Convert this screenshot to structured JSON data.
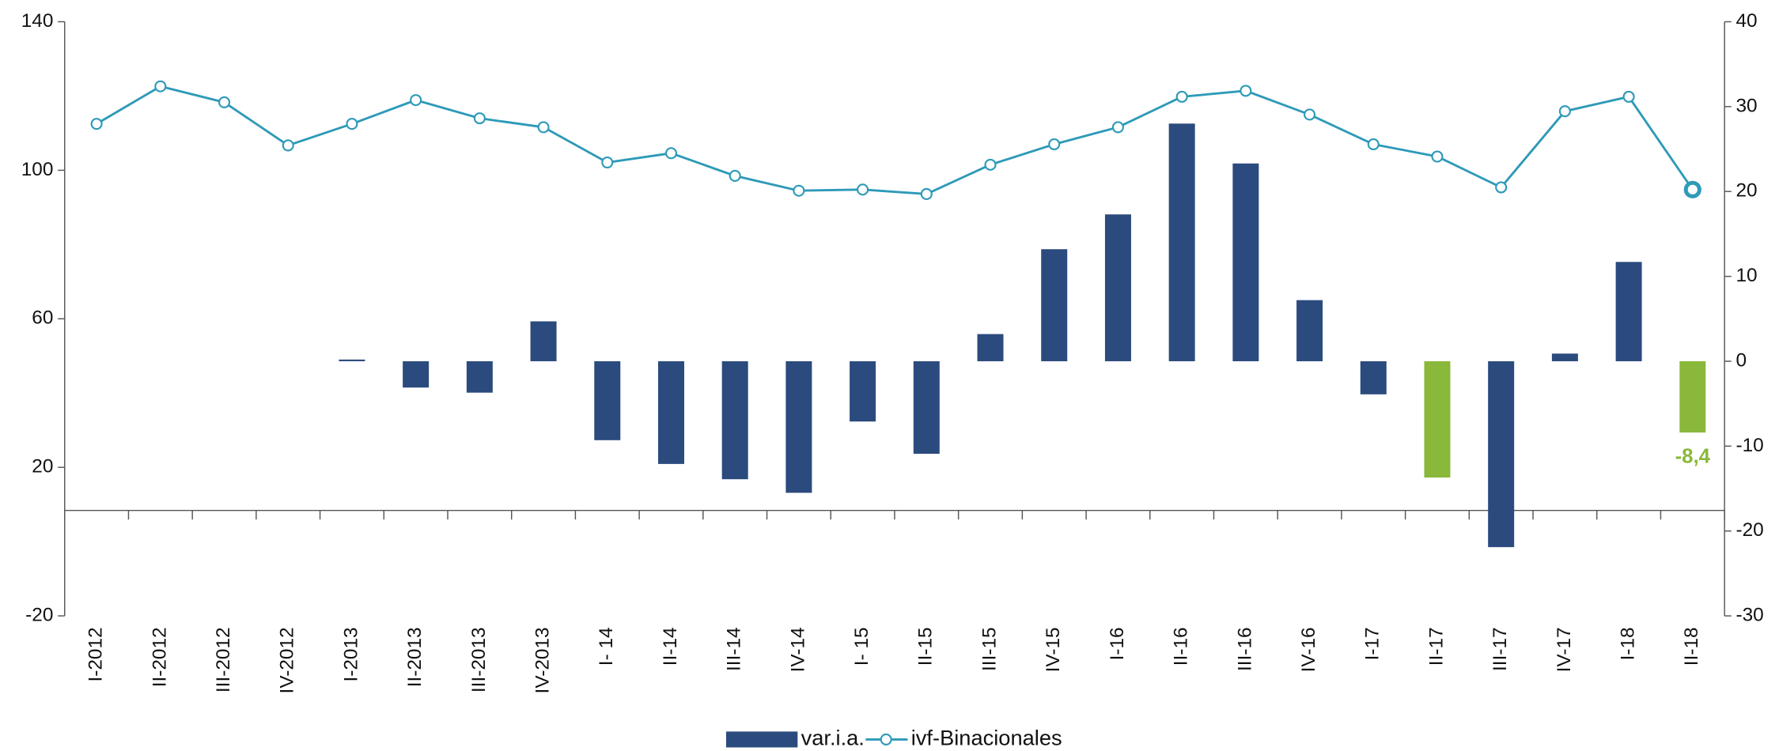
{
  "chart_data": {
    "type": "bar_line",
    "categories": [
      "I-2012",
      "II-2012",
      "III-2012",
      "IV-2012",
      "I-2013",
      "II-2013",
      "III-2013",
      "IV-2013",
      "I- 14",
      "II-14",
      "III-14",
      "IV-14",
      "I- 15",
      "II-15",
      "III-15",
      "IV-15",
      "I-16",
      "II-16",
      "III-16",
      "IV-16",
      "I-17",
      "II-17",
      "III-17",
      "IV-17",
      "I-18",
      "II-18"
    ],
    "ylim": [
      -20,
      140
    ],
    "yticks": [
      -20,
      20,
      60,
      100,
      140
    ],
    "y2lim": [
      -30,
      40
    ],
    "y2ticks": [
      -30,
      -20,
      -10,
      0,
      10,
      20,
      30,
      40
    ],
    "series": [
      {
        "name": "var.i.a.",
        "type": "bar",
        "axis": "y2",
        "color": "#2b4a7e",
        "colors": [
          "#2b4a7e",
          "#2b4a7e",
          "#2b4a7e",
          "#2b4a7e",
          "#2b4a7e",
          "#2b4a7e",
          "#2b4a7e",
          "#2b4a7e",
          "#2b4a7e",
          "#2b4a7e",
          "#2b4a7e",
          "#2b4a7e",
          "#2b4a7e",
          "#2b4a7e",
          "#2b4a7e",
          "#2b4a7e",
          "#2b4a7e",
          "#2b4a7e",
          "#2b4a7e",
          "#2b4a7e",
          "#2b4a7e",
          "#8ab83a",
          "#2b4a7e",
          "#2b4a7e",
          "#2b4a7e",
          "#8ab83a"
        ],
        "values": [
          null,
          null,
          null,
          null,
          0.2,
          -3.1,
          -3.7,
          4.7,
          -9.3,
          -12.1,
          -13.9,
          -15.5,
          -7.1,
          -10.9,
          3.2,
          13.2,
          17.3,
          28.0,
          23.3,
          7.2,
          -3.9,
          -13.7,
          -21.9,
          0.9,
          11.7,
          -8.4
        ],
        "value_labels": [
          null,
          null,
          null,
          null,
          null,
          null,
          null,
          null,
          null,
          null,
          null,
          null,
          null,
          null,
          null,
          null,
          null,
          null,
          null,
          null,
          null,
          null,
          null,
          null,
          null,
          "-8,4"
        ]
      },
      {
        "name": "ivf-Binacionales",
        "type": "line",
        "color": "#2e9ab8",
        "values": [
          112.5,
          122.6,
          118.3,
          106.7,
          112.5,
          118.9,
          114.0,
          111.6,
          102.1,
          104.6,
          98.5,
          94.5,
          94.8,
          93.6,
          101.5,
          107.0,
          111.6,
          119.8,
          121.4,
          115.0,
          107.0,
          103.7,
          95.4,
          115.9,
          119.8,
          94.8
        ]
      }
    ]
  }
}
